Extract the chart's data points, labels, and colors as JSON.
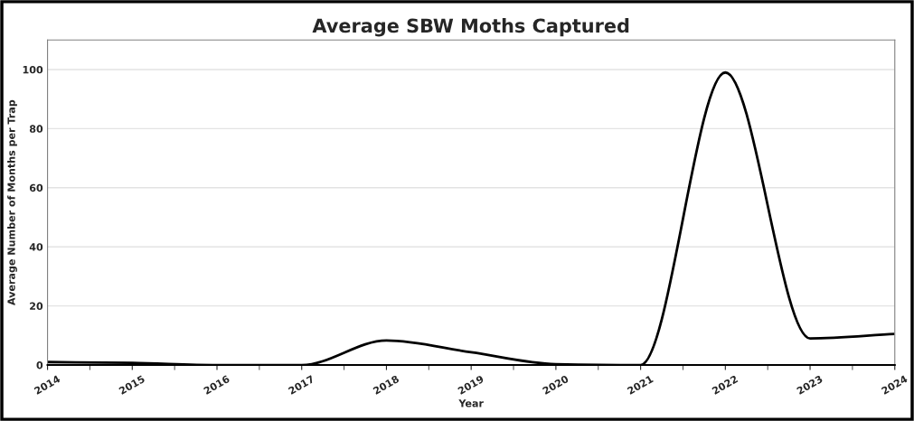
{
  "chart_data": {
    "type": "line",
    "title": "Average SBW Moths Captured",
    "xlabel": "Year",
    "ylabel": "Average Number of Months per Trap",
    "x": [
      2014,
      2015,
      2016,
      2017,
      2018,
      2019,
      2020,
      2021,
      2022,
      2023,
      2024
    ],
    "series": [
      {
        "color": "#000000",
        "values": [
          1.0,
          0.7,
          0,
          0,
          8.3,
          4.3,
          0.3,
          0,
          99,
          9,
          10.5
        ]
      }
    ],
    "xlim": [
      2014,
      2024
    ],
    "xticks": [
      2014,
      2015,
      2016,
      2017,
      2018,
      2019,
      2020,
      2021,
      2022,
      2023,
      2024
    ],
    "ylim": [
      0,
      110
    ],
    "yticks": [
      0,
      20,
      40,
      60,
      80,
      100
    ],
    "grid": "y",
    "legend": false,
    "marker": "none",
    "line_style": "solid"
  }
}
